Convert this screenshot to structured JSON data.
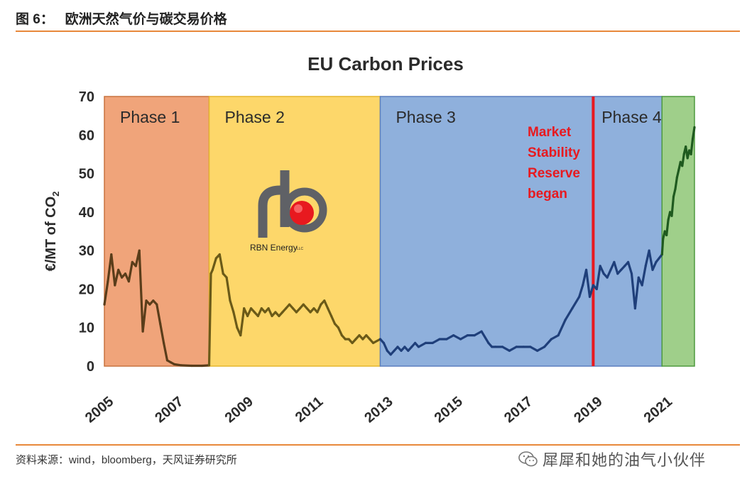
{
  "header": {
    "figure_title": "图 6：   欧洲天然气价与碳交易价格"
  },
  "footer": {
    "source": "资料来源：wind，bloomberg，天风证券研究所",
    "watermark": "犀犀和她的油气小伙伴",
    "watermark_icon": "wechat-icon"
  },
  "logo": {
    "text": "RBN Energy",
    "suffix": "LLC"
  },
  "colors": {
    "phase1": "#f0a47a",
    "phase2": "#fdd76a",
    "phase3": "#8fb0dc",
    "phase4": "#9fcf8a",
    "border1": "#c8733f",
    "border2": "#e5b52c",
    "border3": "#5b7fbf",
    "border4": "#4e9a3e",
    "msr_line": "#e8191f",
    "line_early": "#5a3d1a",
    "line_mid": "#6b5a18",
    "line_p3": "#1f3f7a",
    "line_p4": "#1f5a1f"
  },
  "chart_data": {
    "type": "line",
    "title": "EU Carbon Prices",
    "xlabel": "",
    "ylabel": "€/MT of CO",
    "ylabel_subscript": "2",
    "xlim": [
      2005,
      2021.9
    ],
    "ylim": [
      0,
      70
    ],
    "x_ticks": [
      "2005",
      "2007",
      "2009",
      "2011",
      "2013",
      "2015",
      "2017",
      "2019",
      "2021"
    ],
    "x_tick_values": [
      2005,
      2007,
      2009,
      2011,
      2013,
      2015,
      2017,
      2019,
      2021
    ],
    "y_ticks": [
      "0",
      "10",
      "20",
      "30",
      "40",
      "50",
      "60",
      "70"
    ],
    "y_tick_values": [
      0,
      10,
      20,
      30,
      40,
      50,
      60,
      70
    ],
    "grid": false,
    "phases": [
      {
        "label": "Phase 1",
        "start": 2005,
        "end": 2008
      },
      {
        "label": "Phase 2",
        "start": 2008,
        "end": 2012.9
      },
      {
        "label": "Phase 3",
        "start": 2012.9,
        "end": 2020.97
      },
      {
        "label": "Phase 4",
        "start": 2020.97,
        "end": 2021.9
      }
    ],
    "annotation": {
      "lines": [
        "Market",
        "Stability",
        "Reserve",
        "began"
      ],
      "x": 2019.0
    },
    "series": [
      {
        "x": [
          2005.0,
          2005.1,
          2005.2,
          2005.3,
          2005.4,
          2005.5,
          2005.6,
          2005.7,
          2005.8,
          2005.9,
          2006.0,
          2006.1,
          2006.2,
          2006.3,
          2006.4,
          2006.5,
          2006.6,
          2006.7,
          2006.8,
          2006.9,
          2007.0,
          2007.2,
          2007.5,
          2007.8,
          2008.0
        ],
        "y": [
          16,
          22,
          29,
          21,
          25,
          23,
          24,
          22,
          27,
          26,
          30,
          9,
          17,
          16,
          17,
          16,
          11,
          6,
          1.5,
          1,
          0.5,
          0.2,
          0.1,
          0.1,
          0.2
        ]
      },
      {
        "x": [
          2008.0,
          2008.05,
          2008.1,
          2008.2,
          2008.3,
          2008.4,
          2008.5,
          2008.6,
          2008.7,
          2008.8,
          2008.9,
          2009.0,
          2009.1,
          2009.2,
          2009.3,
          2009.4,
          2009.5,
          2009.6,
          2009.7,
          2009.8,
          2009.9,
          2010.0,
          2010.1,
          2010.2,
          2010.3,
          2010.4,
          2010.5,
          2010.6,
          2010.7,
          2010.8,
          2010.9,
          2011.0,
          2011.1,
          2011.2,
          2011.3,
          2011.4,
          2011.5,
          2011.6,
          2011.7,
          2011.8,
          2011.9,
          2012.0,
          2012.1,
          2012.2,
          2012.3,
          2012.4,
          2012.5,
          2012.6,
          2012.7,
          2012.9
        ],
        "y": [
          0.2,
          24,
          25,
          28,
          29,
          24,
          23,
          17,
          14,
          10,
          8,
          15,
          13,
          15,
          14,
          13,
          15,
          14,
          15,
          13,
          14,
          13,
          14,
          15,
          16,
          15,
          14,
          15,
          16,
          15,
          14,
          15,
          14,
          16,
          17,
          15,
          13,
          11,
          10,
          8,
          7,
          7,
          6,
          7,
          8,
          7,
          8,
          7,
          6,
          7
        ]
      },
      {
        "x": [
          2012.9,
          2013.0,
          2013.1,
          2013.2,
          2013.3,
          2013.4,
          2013.5,
          2013.6,
          2013.7,
          2013.8,
          2013.9,
          2014.0,
          2014.2,
          2014.4,
          2014.6,
          2014.8,
          2015.0,
          2015.2,
          2015.4,
          2015.6,
          2015.8,
          2016.0,
          2016.1,
          2016.2,
          2016.4,
          2016.6,
          2016.8,
          2017.0,
          2017.2,
          2017.4,
          2017.6,
          2017.8,
          2018.0,
          2018.2,
          2018.4,
          2018.6,
          2018.7,
          2018.8,
          2018.9,
          2019.0,
          2019.1,
          2019.2,
          2019.3,
          2019.4,
          2019.5,
          2019.6,
          2019.7,
          2019.8,
          2019.9,
          2020.0,
          2020.1,
          2020.2,
          2020.3,
          2020.4,
          2020.5,
          2020.6,
          2020.7,
          2020.8,
          2020.97
        ],
        "y": [
          7,
          6,
          4,
          3,
          4,
          5,
          4,
          5,
          4,
          5,
          6,
          5,
          6,
          6,
          7,
          7,
          8,
          7,
          8,
          8,
          9,
          6,
          5,
          5,
          5,
          4,
          5,
          5,
          5,
          4,
          5,
          7,
          8,
          12,
          15,
          18,
          21,
          25,
          18,
          21,
          20,
          26,
          24,
          23,
          25,
          27,
          24,
          25,
          26,
          27,
          24,
          15,
          23,
          21,
          26,
          30,
          25,
          27,
          29
        ]
      },
      {
        "x": [
          2020.97,
          2021.0,
          2021.05,
          2021.1,
          2021.15,
          2021.2,
          2021.25,
          2021.3,
          2021.35,
          2021.4,
          2021.45,
          2021.5,
          2021.55,
          2021.6,
          2021.65,
          2021.7,
          2021.75,
          2021.8,
          2021.85,
          2021.9
        ],
        "y": [
          29,
          33,
          35,
          34,
          38,
          40,
          39,
          44,
          46,
          49,
          51,
          53,
          52,
          55,
          57,
          54,
          56,
          55,
          59,
          62
        ]
      }
    ]
  }
}
